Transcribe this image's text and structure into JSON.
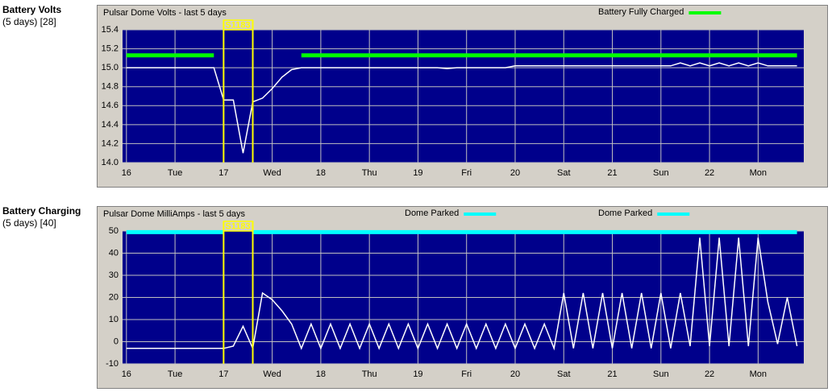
{
  "chart_data": [
    {
      "type": "line",
      "section_title": "Battery Volts",
      "section_subtitle": "(5 days) [28]",
      "title": "Pulsar Dome Volts - last 5 days",
      "x": [
        16.0,
        16.1,
        16.2,
        16.3,
        16.4,
        16.5,
        16.6,
        16.7,
        16.8,
        16.9,
        17.0,
        17.1,
        17.2,
        17.3,
        17.4,
        17.5,
        17.6,
        17.7,
        17.8,
        17.9,
        18.0,
        18.1,
        18.2,
        18.3,
        18.4,
        18.5,
        18.6,
        18.7,
        18.8,
        18.9,
        19.0,
        19.1,
        19.2,
        19.3,
        19.4,
        19.5,
        19.6,
        19.7,
        19.8,
        19.9,
        20.0,
        20.1,
        20.2,
        20.3,
        20.4,
        20.5,
        20.6,
        20.7,
        20.8,
        20.9,
        21.0,
        21.1,
        21.2,
        21.3,
        21.4,
        21.5,
        21.6,
        21.7,
        21.8,
        21.9,
        22.0,
        22.1,
        22.2,
        22.3,
        22.4,
        22.5,
        22.6,
        22.7,
        22.8,
        22.9
      ],
      "series": [
        {
          "color": "#ffffff",
          "values": [
            15.0,
            15.0,
            15.0,
            15.0,
            15.0,
            15.0,
            15.0,
            15.0,
            15.0,
            15.0,
            14.66,
            14.66,
            14.1,
            14.64,
            14.68,
            14.78,
            14.9,
            14.98,
            15.0,
            15.0,
            15.0,
            15.0,
            15.0,
            15.0,
            15.0,
            15.0,
            15.0,
            15.0,
            15.0,
            15.0,
            15.0,
            15.0,
            15.0,
            14.99,
            15.0,
            15.0,
            15.0,
            15.0,
            15.0,
            15.0,
            15.02,
            15.02,
            15.02,
            15.02,
            15.02,
            15.02,
            15.02,
            15.02,
            15.02,
            15.02,
            15.02,
            15.02,
            15.02,
            15.02,
            15.02,
            15.02,
            15.02,
            15.05,
            15.02,
            15.05,
            15.02,
            15.05,
            15.02,
            15.05,
            15.02,
            15.05,
            15.02,
            15.02,
            15.02,
            15.02
          ]
        },
        {
          "name": "Battery Fully Charged",
          "color": "#00ff00",
          "values": [
            15.13,
            15.13,
            15.13,
            15.13,
            15.13,
            15.13,
            15.13,
            15.13,
            15.13,
            15.13,
            null,
            null,
            null,
            null,
            null,
            null,
            null,
            null,
            15.13,
            15.13,
            15.13,
            15.13,
            15.13,
            15.13,
            15.13,
            15.13,
            15.13,
            15.13,
            15.13,
            15.13,
            15.13,
            15.13,
            15.13,
            15.13,
            15.13,
            15.13,
            15.13,
            15.13,
            15.13,
            15.13,
            15.13,
            15.13,
            15.13,
            15.13,
            15.13,
            15.13,
            15.13,
            15.13,
            15.13,
            15.13,
            15.13,
            15.13,
            15.13,
            15.13,
            15.13,
            15.13,
            15.13,
            15.13,
            15.13,
            15.13,
            15.13,
            15.13,
            15.13,
            15.13,
            15.13,
            15.13,
            15.13,
            15.13,
            15.13,
            15.13
          ]
        }
      ],
      "annotation": {
        "label": "S1183",
        "start": 17,
        "end": 17.3
      },
      "xlim": [
        15.96,
        22.97
      ],
      "xticks": [
        16,
        {
          "value": 16.5,
          "label": "Tue"
        },
        17,
        {
          "value": 17.5,
          "label": "Wed"
        },
        18,
        {
          "value": 18.5,
          "label": "Thu"
        },
        19,
        {
          "value": 19.5,
          "label": "Fri"
        },
        20,
        {
          "value": 20.5,
          "label": "Sat"
        },
        21,
        {
          "value": 21.5,
          "label": "Sun"
        },
        22,
        {
          "value": 22.5,
          "label": "Mon"
        }
      ],
      "ylim": [
        14.0,
        15.4
      ],
      "yticks": [
        {
          "value": 14.0,
          "label": "14.0"
        },
        14.2,
        14.4,
        14.6,
        14.8,
        {
          "value": 15.0,
          "label": "15.0"
        },
        15.2,
        15.4
      ],
      "grid": true
    },
    {
      "type": "line",
      "section_title": "Battery Charging",
      "section_subtitle": "(5 days) [40]",
      "title": "Pulsar Dome MilliAmps - last 5 days",
      "x": [
        16.0,
        16.1,
        16.2,
        16.3,
        16.4,
        16.5,
        16.6,
        16.7,
        16.8,
        16.9,
        17.0,
        17.1,
        17.2,
        17.3,
        17.4,
        17.5,
        17.6,
        17.7,
        17.8,
        17.9,
        18.0,
        18.1,
        18.2,
        18.3,
        18.4,
        18.5,
        18.6,
        18.7,
        18.8,
        18.9,
        19.0,
        19.1,
        19.2,
        19.3,
        19.4,
        19.5,
        19.6,
        19.7,
        19.8,
        19.9,
        20.0,
        20.1,
        20.2,
        20.3,
        20.4,
        20.5,
        20.6,
        20.7,
        20.8,
        20.9,
        21.0,
        21.1,
        21.2,
        21.3,
        21.4,
        21.5,
        21.6,
        21.7,
        21.8,
        21.9,
        22.0,
        22.1,
        22.2,
        22.3,
        22.4,
        22.5,
        22.6,
        22.7,
        22.8,
        22.9
      ],
      "series": [
        {
          "color": "#ffffff",
          "values": [
            -3,
            -3,
            -3,
            -3,
            -3,
            -3,
            -3,
            -3,
            -3,
            -3,
            -3,
            -2,
            7,
            -3,
            22,
            19,
            14,
            8,
            -3,
            8,
            -3,
            8,
            -3,
            8,
            -3,
            8,
            -3,
            8,
            -3,
            8,
            -3,
            8,
            -3,
            8,
            -3,
            8,
            -3,
            8,
            -3,
            8,
            -3,
            8,
            -3,
            8,
            -3,
            22,
            -3,
            22,
            -3,
            22,
            -3,
            22,
            -3,
            22,
            -3,
            22,
            -3,
            22,
            -2,
            47,
            -2,
            47,
            -2,
            47,
            -2,
            47,
            18,
            -1,
            20,
            -2
          ]
        },
        {
          "name": "Dome Parked",
          "color": "#00ffff",
          "values": [
            49.5,
            49.5,
            49.5,
            49.5,
            49.5,
            49.5,
            49.5,
            49.5,
            49.5,
            49.5,
            49.5,
            null,
            null,
            null,
            null,
            null,
            null,
            null,
            null,
            null,
            null,
            null,
            null,
            null,
            null,
            null,
            null,
            null,
            null,
            null,
            null,
            null,
            null,
            null,
            null,
            null,
            null,
            null,
            null,
            null,
            null,
            null,
            null,
            null,
            null,
            null,
            null,
            null,
            null,
            null,
            null,
            null,
            null,
            null,
            null,
            null,
            null,
            null,
            null,
            null,
            null,
            null,
            null,
            null,
            null,
            null,
            null,
            null,
            null,
            null
          ]
        },
        {
          "name": "Dome Parked",
          "color": "#00ffff",
          "values": [
            null,
            null,
            null,
            null,
            null,
            null,
            null,
            null,
            null,
            null,
            null,
            null,
            null,
            49.5,
            49.5,
            49.5,
            49.5,
            49.5,
            49.5,
            49.5,
            49.5,
            49.5,
            49.5,
            49.5,
            49.5,
            49.5,
            49.5,
            49.5,
            49.5,
            49.5,
            49.5,
            49.5,
            49.5,
            49.5,
            49.5,
            49.5,
            49.5,
            49.5,
            49.5,
            49.5,
            49.5,
            49.5,
            49.5,
            49.5,
            49.5,
            49.5,
            49.5,
            49.5,
            49.5,
            49.5,
            49.5,
            49.5,
            49.5,
            49.5,
            49.5,
            49.5,
            49.5,
            49.5,
            49.5,
            49.5,
            49.5,
            49.5,
            49.5,
            49.5,
            49.5,
            49.5,
            49.5,
            49.5,
            49.5,
            49.5
          ]
        }
      ],
      "annotation": {
        "label": "S1183",
        "start": 17,
        "end": 17.3
      },
      "xlim": [
        15.96,
        22.97
      ],
      "xticks": [
        16,
        {
          "value": 16.5,
          "label": "Tue"
        },
        17,
        {
          "value": 17.5,
          "label": "Wed"
        },
        18,
        {
          "value": 18.5,
          "label": "Thu"
        },
        19,
        {
          "value": 19.5,
          "label": "Fri"
        },
        20,
        {
          "value": 20.5,
          "label": "Sat"
        },
        21,
        {
          "value": 21.5,
          "label": "Sun"
        },
        22,
        {
          "value": 22.5,
          "label": "Mon"
        }
      ],
      "ylim": [
        -10,
        50
      ],
      "yticks": [
        -10,
        0,
        10,
        20,
        30,
        40,
        50
      ],
      "grid": true
    }
  ]
}
